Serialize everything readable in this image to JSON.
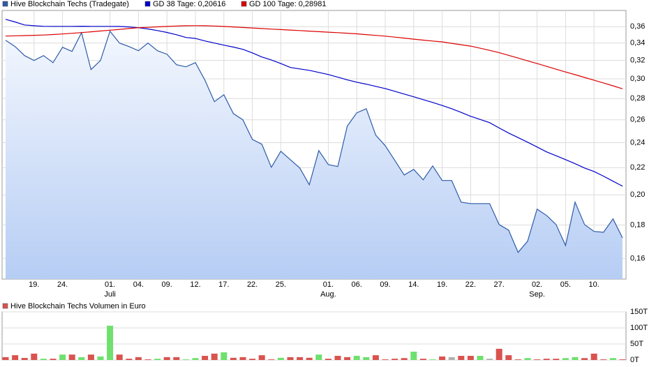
{
  "chart_data": [
    {
      "type": "line",
      "categories": [
        null,
        null,
        null,
        "19.",
        null,
        null,
        "24.",
        null,
        null,
        null,
        null,
        "01.",
        null,
        null,
        "04.",
        null,
        null,
        "09.",
        null,
        null,
        "12.",
        null,
        null,
        "17.",
        null,
        null,
        "22.",
        null,
        null,
        "25.",
        null,
        null,
        null,
        null,
        "01.",
        null,
        null,
        "06.",
        null,
        null,
        "09.",
        null,
        null,
        "14.",
        null,
        null,
        "19.",
        null,
        null,
        "22.",
        null,
        null,
        "27.",
        null,
        null,
        null,
        "02.",
        null,
        null,
        "05.",
        null,
        null,
        "10.",
        null,
        null,
        null
      ],
      "months": [
        null,
        null,
        null,
        null,
        null,
        null,
        null,
        null,
        null,
        null,
        null,
        "Juli",
        null,
        null,
        null,
        null,
        null,
        null,
        null,
        null,
        null,
        null,
        null,
        null,
        null,
        null,
        null,
        null,
        null,
        null,
        null,
        null,
        null,
        null,
        "Aug.",
        null,
        null,
        null,
        null,
        null,
        null,
        null,
        null,
        null,
        null,
        null,
        null,
        null,
        null,
        null,
        null,
        null,
        null,
        null,
        null,
        null,
        "Sep.",
        null,
        null,
        null,
        null,
        null,
        null,
        null,
        null,
        null
      ],
      "series": [
        {
          "name": "Hive Blockchain Techs (Tradegate)",
          "color": "#2e5ca8",
          "area": true,
          "values": [
            0.3433,
            0.3359,
            0.3254,
            0.3199,
            0.3254,
            0.3175,
            0.335,
            0.3302,
            0.3526,
            0.3099,
            0.3199,
            0.3544,
            0.34,
            0.3359,
            0.331,
            0.34,
            0.331,
            0.327,
            0.3152,
            0.3129,
            0.3175,
            0.2987,
            0.277,
            0.2838,
            0.2657,
            0.26,
            0.2428,
            0.2387,
            0.2202,
            0.2329,
            0.2262,
            0.2197,
            0.2072,
            0.2335,
            0.2224,
            0.2208,
            0.2543,
            0.2664,
            0.2703,
            0.2464,
            0.2375,
            0.2257,
            0.2144,
            0.2186,
            0.2108,
            0.2213,
            0.2103,
            0.2103,
            0.195,
            0.194,
            0.194,
            0.194,
            0.1803,
            0.1768,
            0.1636,
            0.1701,
            0.1903,
            0.1861,
            0.1803,
            0.1676,
            0.195,
            0.1803,
            0.176,
            0.1755,
            0.1839,
            0.1721
          ]
        },
        {
          "name": "GD 38 Tage: 0,20616",
          "color": "#0000cc",
          "area": false,
          "values": [
            0.3694,
            0.366,
            0.3622,
            0.3612,
            0.3605,
            0.3604,
            0.3604,
            0.3604,
            0.3606,
            0.3604,
            0.3604,
            0.3604,
            0.3603,
            0.3597,
            0.3587,
            0.3572,
            0.3552,
            0.3528,
            0.35,
            0.3467,
            0.3455,
            0.3425,
            0.34,
            0.3375,
            0.3352,
            0.3326,
            0.3285,
            0.3238,
            0.3205,
            0.3165,
            0.3122,
            0.3106,
            0.3091,
            0.3068,
            0.3046,
            0.3018,
            0.299,
            0.2965,
            0.2945,
            0.2922,
            0.29,
            0.2873,
            0.2845,
            0.2818,
            0.279,
            0.2763,
            0.2733,
            0.2703,
            0.2668,
            0.2632,
            0.2603,
            0.2574,
            0.2527,
            0.2482,
            0.2443,
            0.2404,
            0.2364,
            0.2324,
            0.2293,
            0.2262,
            0.223,
            0.2197,
            0.217,
            0.2135,
            0.2098,
            0.2062
          ]
        },
        {
          "name": "GD 100 Tage: 0,28981",
          "color": "#dd0000",
          "area": false,
          "values": [
            0.3484,
            0.3487,
            0.349,
            0.3493,
            0.3497,
            0.3503,
            0.3509,
            0.3518,
            0.3527,
            0.3536,
            0.3546,
            0.3556,
            0.3566,
            0.3577,
            0.3587,
            0.3592,
            0.3598,
            0.3603,
            0.3608,
            0.3612,
            0.3613,
            0.3612,
            0.3608,
            0.3603,
            0.3597,
            0.359,
            0.3584,
            0.3577,
            0.357,
            0.3564,
            0.3558,
            0.3552,
            0.3545,
            0.3538,
            0.3532,
            0.3526,
            0.3519,
            0.3511,
            0.3502,
            0.3492,
            0.3483,
            0.3471,
            0.3459,
            0.3447,
            0.3435,
            0.3424,
            0.3414,
            0.3397,
            0.338,
            0.3364,
            0.3339,
            0.3314,
            0.3288,
            0.3257,
            0.3226,
            0.3195,
            0.3165,
            0.3134,
            0.3103,
            0.3073,
            0.3044,
            0.3015,
            0.2986,
            0.2957,
            0.2928,
            0.2898
          ]
        }
      ],
      "log_scale": true,
      "grid": true,
      "ylim": [
        0.149,
        0.381
      ],
      "yticks": [
        {
          "value": 0.16,
          "label": "0,16"
        },
        {
          "value": 0.18,
          "label": "0,18"
        },
        {
          "value": 0.2,
          "label": "0,20"
        },
        {
          "value": 0.22,
          "label": "0,22"
        },
        {
          "value": 0.24,
          "label": "0,24"
        },
        {
          "value": 0.26,
          "label": "0,26"
        },
        {
          "value": 0.28,
          "label": "0,28"
        },
        {
          "value": 0.3,
          "label": "0,30"
        },
        {
          "value": 0.32,
          "label": "0,32"
        },
        {
          "value": 0.34,
          "label": "0,34"
        },
        {
          "value": 0.36,
          "label": "0,36"
        }
      ]
    },
    {
      "type": "bar",
      "title": "Hive Blockchain Techs Volumen in Euro",
      "color": "#d9534f",
      "values": [
        9000,
        15000,
        6500,
        20000,
        4000,
        4000,
        17000,
        17000,
        9000,
        17000,
        11000,
        107000,
        17000,
        4000,
        9000,
        2000,
        4000,
        9000,
        9000,
        2000,
        6000,
        13000,
        20000,
        24000,
        7000,
        9000,
        4000,
        15000,
        2000,
        7000,
        9000,
        9000,
        7000,
        17000,
        4000,
        13000,
        9000,
        13000,
        9000,
        15000,
        2000,
        4000,
        6000,
        26000,
        4000,
        2000,
        11000,
        9000,
        13000,
        13000,
        13000,
        4000,
        35000,
        15000,
        2000,
        6000,
        2000,
        4000,
        4000,
        6000,
        9000,
        6000,
        20000,
        2000,
        6000,
        2000
      ],
      "colors": [
        "#d9534f",
        "#d9534f",
        "#d9534f",
        "#d9534f",
        "#6ee06e",
        "#d9534f",
        "#6ee06e",
        "#d9534f",
        "#6ee06e",
        "#d9534f",
        "#6ee06e",
        "#6ee06e",
        "#d9534f",
        "#d9534f",
        "#d9534f",
        "#d9534f",
        "#6ee06e",
        "#d9534f",
        "#d9534f",
        "#6ee06e",
        "#6ee06e",
        "#d9534f",
        "#d9534f",
        "#6ee06e",
        "#d9534f",
        "#d9534f",
        "#d9534f",
        "#d9534f",
        "#d9534f",
        "#6ee06e",
        "#d9534f",
        "#d9534f",
        "#d9534f",
        "#6ee06e",
        "#d9534f",
        "#d9534f",
        "#d9534f",
        "#6ee06e",
        "#6ee06e",
        "#d9534f",
        "#d9534f",
        "#d9534f",
        "#d9534f",
        "#6ee06e",
        "#d9534f",
        "#6ee06e",
        "#d9534f",
        "#b0b0b0",
        "#d9534f",
        "#d9534f",
        "#6ee06e",
        "#b0b0b0",
        "#d9534f",
        "#d9534f",
        "#d9534f",
        "#6ee06e",
        "#d9534f",
        "#d9534f",
        "#d9534f",
        "#6ee06e",
        "#6ee06e",
        "#d9534f",
        "#d9534f",
        "#d9534f",
        "#6ee06e",
        "#d9534f"
      ],
      "ylim": [
        0,
        150000
      ],
      "yticks": [
        {
          "value": 0,
          "label": "0T"
        },
        {
          "value": 50000,
          "label": "50T"
        },
        {
          "value": 100000,
          "label": "100T"
        },
        {
          "value": 150000,
          "label": "150T"
        }
      ],
      "grid": true
    }
  ]
}
